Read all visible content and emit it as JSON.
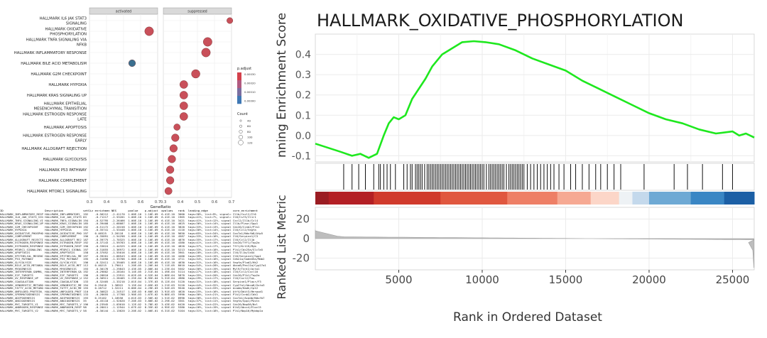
{
  "chart_data": [
    {
      "type": "scatter",
      "subtype": "dotplot",
      "facets": [
        "activated",
        "suppressed"
      ],
      "xlabel": "GeneRatio",
      "xlim": [
        0.3,
        0.7
      ],
      "xticks": [
        "0.3",
        "0.4",
        "0.5",
        "0.6",
        "0.7"
      ],
      "categories": [
        "HALLMARK IL6 JAK STAT3 SIGNALING",
        "HALLMARK OXIDATIVE PHOSPHORYLATION",
        "HALLMARK TNFA SIGNALING VIA NFKB",
        "HALLMARK INFLAMMATORY RESPONSE",
        "HALLMARK BILE ACID METABOLISM",
        "HALLMARK G2M CHECKPOINT",
        "HALLMARK HYPOXIA",
        "HALLMARK KRAS SIGNALING UP",
        "HALLMARK EPITHELIAL MESENCHYMAL TRANSITION",
        "HALLMARK ESTROGEN RESPONSE LATE",
        "HALLMARK APOPTOSIS",
        "HALLMARK ESTROGEN RESPONSE EARLY",
        "HALLMARK ALLOGRAFT REJECTION",
        "HALLMARK GLYCOLYSIS",
        "HALLMARK P53 PATHWAY",
        "HALLMARK COMPLEMENT",
        "HALLMARK MTORC1 SIGNALING"
      ],
      "category_labels": [
        [
          "HALLMARK IL6 JAK STAT3",
          "SIGNALING"
        ],
        [
          "HALLMARK OXIDATIVE",
          "PHOSPHORYLATION"
        ],
        [
          "HALLMARK TNFA SIGNALING VIA",
          "NFKB"
        ],
        [
          "HALLMARK INFLAMMATORY RESPONSE"
        ],
        [
          "HALLMARK BILE ACID METABOLISM"
        ],
        [
          "HALLMARK G2M CHECKPOINT"
        ],
        [
          "HALLMARK HYPOXIA"
        ],
        [
          "HALLMARK KRAS SIGNALING UP"
        ],
        [
          "HALLMARK EPITHELIAL",
          "MESENCHYMAL TRANSITION"
        ],
        [
          "HALLMARK ESTROGEN RESPONSE",
          "LATE"
        ],
        [
          "HALLMARK APOPTOSIS"
        ],
        [
          "HALLMARK ESTROGEN RESPONSE",
          "EARLY"
        ],
        [
          "HALLMARK ALLOGRAFT REJECTION"
        ],
        [
          "HALLMARK GLYCOLYSIS"
        ],
        [
          "HALLMARK P53 PATHWAY"
        ],
        [
          "HALLMARK COMPLEMENT"
        ],
        [
          "HALLMARK MTORC1 SIGNALING"
        ]
      ],
      "points": [
        {
          "facet": "suppressed",
          "category": 0,
          "x": 0.69,
          "size": 40,
          "color": "#c8505a"
        },
        {
          "facet": "activated",
          "category": 1,
          "x": 0.65,
          "size": 120,
          "color": "#c9505a"
        },
        {
          "facet": "suppressed",
          "category": 2,
          "x": 0.56,
          "size": 120,
          "color": "#c9505a"
        },
        {
          "facet": "suppressed",
          "category": 3,
          "x": 0.55,
          "size": 120,
          "color": "#c9505a"
        },
        {
          "facet": "activated",
          "category": 4,
          "x": 0.55,
          "size": 60,
          "color": "#3a6f8f"
        },
        {
          "facet": "suppressed",
          "category": 5,
          "x": 0.49,
          "size": 110,
          "color": "#c9505a"
        },
        {
          "facet": "suppressed",
          "category": 6,
          "x": 0.42,
          "size": 90,
          "color": "#c9505a"
        },
        {
          "facet": "suppressed",
          "category": 7,
          "x": 0.42,
          "size": 90,
          "color": "#c9505a"
        },
        {
          "facet": "suppressed",
          "category": 8,
          "x": 0.42,
          "size": 90,
          "color": "#c9505a"
        },
        {
          "facet": "suppressed",
          "category": 9,
          "x": 0.42,
          "size": 90,
          "color": "#c9505a"
        },
        {
          "facet": "suppressed",
          "category": 10,
          "x": 0.38,
          "size": 50,
          "color": "#c9505a"
        },
        {
          "facet": "suppressed",
          "category": 11,
          "x": 0.37,
          "size": 80,
          "color": "#c9505a"
        },
        {
          "facet": "suppressed",
          "category": 12,
          "x": 0.36,
          "size": 80,
          "color": "#c9505a"
        },
        {
          "facet": "suppressed",
          "category": 13,
          "x": 0.35,
          "size": 80,
          "color": "#c9505a"
        },
        {
          "facet": "suppressed",
          "category": 14,
          "x": 0.34,
          "size": 80,
          "color": "#c9505a"
        },
        {
          "facet": "suppressed",
          "category": 15,
          "x": 0.34,
          "size": 80,
          "color": "#c9505a"
        },
        {
          "facet": "suppressed",
          "category": 16,
          "x": 0.33,
          "size": 70,
          "color": "#c9505a"
        }
      ],
      "legend_color": {
        "title": "p.adjust",
        "labels": [
          "0.00030",
          "0.00020",
          "0.00010",
          "0.00000"
        ],
        "colors": [
          "#d3404b",
          "#b15a80",
          "#7a6ea0",
          "#3f78b4"
        ]
      },
      "legend_size": {
        "title": "Count",
        "labels": [
          "40",
          "60",
          "80",
          "100",
          "120"
        ]
      }
    },
    {
      "type": "line",
      "title": "HALLMARK_OXIDATIVE_PHOSPHORYLATION",
      "ylabel_top": "Running Enrichment Score",
      "ylabel_top_visible": "nning Enrichment Score",
      "ylabel_bottom": "Ranked List Metric",
      "xlabel": "Rank in Ordered Dataset",
      "xlim": [
        0,
        26300
      ],
      "xticks": [
        5000,
        10000,
        15000,
        20000,
        25000
      ],
      "xtick_labels": [
        "5000",
        "10000",
        "15000",
        "20000",
        "25000"
      ],
      "es_ylim": [
        -0.13,
        0.5
      ],
      "es_yticks": [
        "0.4",
        "0.3",
        "0.2",
        "0.1",
        "0.0",
        "-0.1"
      ],
      "es_ytick_values": [
        0.4,
        0.3,
        0.2,
        0.1,
        0.0,
        -0.1
      ],
      "metric_ylim": [
        -32,
        32
      ],
      "metric_yticks": [
        "20",
        "0",
        "-20"
      ],
      "metric_ytick_values": [
        20,
        0,
        -20
      ],
      "es_color": "#1ee81e",
      "es_curve": {
        "x": [
          0,
          1500,
          2200,
          2700,
          3200,
          3700,
          4100,
          4400,
          4700,
          5000,
          5400,
          5800,
          6200,
          6600,
          7000,
          7600,
          8200,
          8800,
          9500,
          10200,
          11000,
          12000,
          13000,
          14000,
          15000,
          16000,
          17000,
          18000,
          19000,
          20000,
          21000,
          22000,
          23000,
          24000,
          25000,
          25400,
          25800,
          26300
        ],
        "y": [
          -0.04,
          -0.08,
          -0.1,
          -0.09,
          -0.11,
          -0.09,
          0.0,
          0.06,
          0.09,
          0.08,
          0.1,
          0.18,
          0.23,
          0.28,
          0.34,
          0.4,
          0.43,
          0.46,
          0.465,
          0.46,
          0.45,
          0.42,
          0.38,
          0.35,
          0.32,
          0.27,
          0.23,
          0.19,
          0.15,
          0.11,
          0.08,
          0.06,
          0.03,
          0.01,
          0.02,
          -0.0,
          0.01,
          -0.01
        ]
      },
      "hit_ranks": [
        1700,
        2200,
        2600,
        3000,
        3500,
        3800,
        3900,
        4100,
        4300,
        4500,
        4800,
        5300,
        5500,
        5700,
        5800,
        6000,
        6100,
        6200,
        6300,
        6400,
        6550,
        6700,
        6800,
        6900,
        7000,
        7100,
        7200,
        7300,
        7400,
        7500,
        7600,
        7700,
        7800,
        7900,
        8000,
        8100,
        8200,
        8300,
        8400,
        8500,
        8600,
        8700,
        8800,
        8900,
        9000,
        9100,
        9200,
        9300,
        9400,
        9500,
        9600,
        9700,
        9800,
        9900,
        10000,
        10100,
        10250,
        10400,
        10500,
        10600,
        10700,
        10800,
        10900,
        11000,
        11100,
        11200,
        11300,
        11450,
        11600,
        11700,
        11800,
        11900,
        12000,
        12100,
        12200,
        12300,
        12400,
        12500,
        12700,
        12900,
        13100,
        13300,
        13500,
        13700,
        13900,
        14100,
        14300,
        14600,
        14900,
        15300,
        15600,
        16000,
        16400,
        16800,
        17100,
        17500,
        17900,
        18300,
        19700,
        21500,
        22300,
        23200,
        24400,
        25000
      ],
      "colorbar": [
        {
          "start": 0,
          "end": 800,
          "color": "#9a1c22"
        },
        {
          "start": 800,
          "end": 3500,
          "color": "#b31f24"
        },
        {
          "start": 3500,
          "end": 7500,
          "color": "#d03a2c"
        },
        {
          "start": 7500,
          "end": 11500,
          "color": "#e0573f"
        },
        {
          "start": 11500,
          "end": 14500,
          "color": "#ee7f66"
        },
        {
          "start": 14500,
          "end": 16500,
          "color": "#f6a993"
        },
        {
          "start": 16500,
          "end": 18200,
          "color": "#fcd6c8"
        },
        {
          "start": 18200,
          "end": 19000,
          "color": "#eef2f5"
        },
        {
          "start": 19000,
          "end": 20000,
          "color": "#c4d9ec"
        },
        {
          "start": 20000,
          "end": 22500,
          "color": "#6ea9d4"
        },
        {
          "start": 22500,
          "end": 24500,
          "color": "#3a86c4"
        },
        {
          "start": 24500,
          "end": 26300,
          "color": "#1c5fa5"
        }
      ]
    }
  ],
  "table": {
    "headers": [
      "ID",
      "Description",
      "setSize",
      "enrichmentScore",
      "NES",
      "pvalue",
      "p.adjust",
      "qvalues",
      "rank",
      "leading_edge",
      "core_enrichment"
    ],
    "rows": [
      [
        "HALLMARK_INFLAMMATORY_RESPONSE",
        "HALLMARK_INFLAMMATORY_RESPON",
        "192",
        "-0.56212",
        "-2.41170",
        "1.00E-10",
        "1.10E-09",
        "6.41E-10",
        "3000",
        "tags=38%, list=9%, signal=35%",
        "Il1b/Cxcl2/Il6"
      ],
      [
        "HALLMARK_IL6_JAK_STAT3_SIGNALING",
        "HALLMARK_IL6_JAK_STAT3_SIGNA",
        "83",
        "-0.71217",
        "-2.53201",
        "1.00E-10",
        "1.10E-09",
        "6.41E-10",
        "1965",
        "tags=41%, list=7%, signal=39%",
        "Il6/Csf3/Il1r1"
      ],
      [
        "HALLMARK_TNFA_SIGNALING_VIA_NFKB",
        "HALLMARK_TNFA_SIGNALING_VIA_",
        "194",
        "-0.52795",
        "-2.26466",
        "1.00E-10",
        "1.10E-09",
        "6.41E-10",
        "3421",
        "tags=41%, list=12%, signal=37%",
        "Cxcl2/Il1b/Ccl4"
      ],
      [
        "HALLMARK_KRAS_SIGNALING_UP",
        "HALLMARK_KRAS_SIGNALING_UP",
        "185",
        "-0.39408",
        "-1.68087",
        "1.00E-10",
        "1.10E-09",
        "6.41E-10",
        "4025",
        "tags=36%, list=14%, signal=31%",
        "Il1b/Plaur/Spp1"
      ],
      [
        "HALLMARK_G2M_CHECKPOINT",
        "HALLMARK_G2M_CHECKPOINT",
        "192",
        "-0.51172",
        "-2.20158",
        "1.00E-10",
        "1.10E-09",
        "6.41E-10",
        "3820",
        "tags=33%, list=13%, signal=29%",
        "Cdc20/Ccnb2/Plk1"
      ],
      [
        "HALLMARK_HYPOXIA",
        "HALLMARK_HYPOXIA",
        "191",
        "-0.35741",
        "-1.53448",
        "1.00E-10",
        "1.10E-09",
        "6.41E-10",
        "4116",
        "tags=30%, list=14%, signal=26%",
        "Il6/Ccl2/Vegfa"
      ],
      [
        "HALLMARK_OXIDATIVE_PHOSPHORYLATION",
        "HALLMARK_OXIDATIVE_PHOSPHOR",
        "197",
        "0.46525",
        "2.20118",
        "1.00E-10",
        "1.10E-09",
        "6.41E-10",
        "9650",
        "tags=65%, list=34%, signal=43%",
        "Cox7a1/Ndufb8/Atp5"
      ],
      [
        "HALLMARK_COMPLEMENT",
        "HALLMARK_COMPLEMENT",
        "196",
        "-0.35891",
        "-1.54298",
        "1.00E-10",
        "1.10E-09",
        "6.41E-10",
        "4587",
        "tags=33%, list=16%, signal=28%",
        "Il6/Serpine1/C3"
      ],
      [
        "HALLMARK_ALLOGRAFT_REJECTION",
        "HALLMARK_ALLOGRAFT_REJECTION",
        "187",
        "-0.39775",
        "-1.70325",
        "1.00E-10",
        "1.10E-09",
        "6.41E-10",
        "4876",
        "tags=35%, list=17%, signal=29%",
        "Il6/Ccl2/Il1b"
      ],
      [
        "HALLMARK_ESTROGEN_RESPONSE_LATE",
        "HALLMARK_ESTROGEN_RESPONSE_",
        "192",
        "-0.37143",
        "-1.59783",
        "1.00E-10",
        "1.10E-09",
        "6.41E-10",
        "4380",
        "tags=41%, list=15%, signal=35%",
        "Cdc20/Tff1/Top2a"
      ],
      [
        "HALLMARK_ESTROGEN_RESPONSE_EARLY",
        "HALLMARK_ESTROGEN_RESPONSE_",
        "190",
        "-0.33624",
        "-1.44325",
        "1.00E-10",
        "1.10E-09",
        "6.41E-10",
        "4820",
        "tags=37%, list=17%, signal=31%",
        "Tff1/Krt19/Myb"
      ],
      [
        "HALLMARK_MTORC1_SIGNALING",
        "HALLMARK_MTORC1_SIGNALING",
        "197",
        "-0.31855",
        "-1.36972",
        "1.00E-10",
        "1.10E-09",
        "6.41E-10",
        "5213",
        "tags=33%, list=18%, signal=27%",
        "Plk1/Cdc25a/Slc7a5"
      ],
      [
        "HALLMARK_APOPTOSIS",
        "HALLMARK_APOPTOSIS",
        "158",
        "-0.37052",
        "-1.55016",
        "1.00E-10",
        "1.10E-09",
        "6.41E-10",
        "3901",
        "tags=28%, list=13%, signal=24%",
        "Il6/Il1b/Cd44"
      ],
      [
        "HALLMARK_EPITHELIAL_MESENCHYMAL_TRANS",
        "HALLMARK_EPITHELIAL_MESENCHY",
        "197",
        "-0.39201",
        "-1.68543",
        "1.00E-10",
        "1.10E-09",
        "6.41E-10",
        "4400",
        "tags=39%, list=15%, signal=34%",
        "Il6/Serpine1/Spp1"
      ],
      [
        "HALLMARK_P53_PATHWAY",
        "HALLMARK_P53_PATHWAY",
        "195",
        "-0.31090",
        "-1.33706",
        "1.00E-10",
        "1.10E-09",
        "6.41E-10",
        "4711",
        "tags=34%, list=16%, signal=29%",
        "Cdkn1a/Gadd45a/Mdm2"
      ],
      [
        "HALLMARK_GLYCOLYSIS",
        "HALLMARK_GLYCOLYSIS",
        "196",
        "-0.32411",
        "-1.39405",
        "1.00E-10",
        "1.10E-09",
        "6.41E-10",
        "4630",
        "tags=31%, list=16%, signal=27%",
        "Vegfa/Plod2/Hk2"
      ],
      [
        "HALLMARK_BILE_ACID_METABOLISM",
        "HALLMARK_BILE_ACID_METABOLIS",
        "112",
        "0.40215",
        "1.79011",
        "1.20E-05",
        "1.20E-04",
        "7.11E-05",
        "8010",
        "tags=54%, list=28%, signal=39%",
        "Abca8/Pex11a/Cyp27a1"
      ],
      [
        "HALLMARK_MYOGENESIS",
        "HALLMARK_MYOGENESIS",
        "193",
        "-0.30176",
        "-1.29843",
        "2.43E-05",
        "2.08E-04",
        "1.23E-04",
        "5502",
        "tags=30%, list=19%, signal=25%",
        "Myl9/Tnnt2/Acta1"
      ],
      [
        "HALLMARK_INTERFERON_GAMMA_RESPONSE",
        "HALLMARK_INTERFERON_GAMMA_RE",
        "192",
        "-0.29802",
        "-1.28164",
        "3.14E-05",
        "2.51E-04",
        "1.49E-04",
        "5114",
        "tags=27%, list=18%, signal=23%",
        "Il6/Ccl2/Cxcl10"
      ],
      [
        "HALLMARK_E2F_TARGETS",
        "HALLMARK_E2F_TARGETS",
        "196",
        "-0.28810",
        "-1.23911",
        "6.02E-05",
        "4.52E-04",
        "2.68E-04",
        "5870",
        "tags=35%, list=20%, signal=28%",
        "Cdc20/Plk1/Top2a"
      ],
      [
        "HALLMARK_UV_RESPONSE_UP",
        "HALLMARK_UV_RESPONSE_UP",
        "152",
        "-0.30911",
        "-1.28405",
        "1.25E-04",
        "8.95E-04",
        "5.31E-04",
        "4980",
        "tags=29%, list=17%, signal=24%",
        "Il6/Cxcl2/Fos"
      ],
      [
        "HALLMARK_COAGULATION",
        "HALLMARK_COAGULATION",
        "133",
        "-0.32405",
        "-1.33210",
        "2.01E-04",
        "1.37E-03",
        "8.12E-04",
        "5120",
        "tags=31%, list=18%, signal=26%",
        "Serpine1/Plaur/F3"
      ],
      [
        "HALLMARK_XENOBIOTIC_METABOLISM",
        "HALLMARK_XENOBIOTIC_METABOLI",
        "194",
        "0.29418",
        "1.38922",
        "3.15E-04",
        "2.05E-03",
        "1.21E-03",
        "9120",
        "tags=44%, list=32%, signal=30%",
        "Cyp27a1/Abca8/Gsta3"
      ],
      [
        "HALLMARK_FATTY_ACID_METABOLISM",
        "HALLMARK_FATTY_ACID_METABOL",
        "155",
        "0.28712",
        "1.32211",
        "6.88E-04",
        "4.29E-03",
        "2.54E-03",
        "9540",
        "tags=46%, list=33%, signal=31%",
        "Acadm/Hadh/Cpt2"
      ],
      [
        "HALLMARK_UNFOLDED_PROTEIN_RESPONSE",
        "HALLMARK_UNFOLDED_PROTEIN_RE",
        "110",
        "-0.30822",
        "-1.24517",
        "1.10E-03",
        "6.60E-03",
        "3.91E-03",
        "4620",
        "tags=25%, list=16%, signal=21%",
        "Atf4/Ddit3/Herpud1"
      ],
      [
        "HALLMARK_SPERMATOGENESIS",
        "HALLMARK_SPERMATOGENESIS",
        "133",
        "-0.28655",
        "-1.17788",
        "2.90E-03",
        "1.67E-02",
        "9.88E-03",
        "5990",
        "tags=30%, list=21%, signal=24%",
        "Plk1/Ccnb2/Cdk1"
      ],
      [
        "HALLMARK_ADIPOGENESIS",
        "HALLMARK_ADIPOGENESIS",
        "193",
        "0.25102",
        "1.18556",
        "4.61E-03",
        "2.56E-02",
        "1.51E-02",
        "8990",
        "tags=38%, list=31%, signal=27%",
        "Cox7a1/Acadm/Ndufb7"
      ],
      [
        "HALLMARK_ANGIOGENESIS",
        "HALLMARK_ANGIOGENESIS",
        "35",
        "-0.45118",
        "-1.52020",
        "7.20E-03",
        "3.86E-02",
        "2.29E-02",
        "3301",
        "tags=37%, list=11%, signal=33%",
        "Vegfa/Spp1/Postn"
      ],
      [
        "HALLMARK_MYC_TARGETS_V1",
        "HALLMARK_MYC_TARGETS_V1",
        "196",
        "-0.23945",
        "-1.03010",
        "1.12E-02",
        "5.78E-02",
        "3.43E-02",
        "6420",
        "tags=29%, list=22%, signal=23%",
        "Cdc20/Nop56/Ncl"
      ],
      [
        "HALLMARK_ANDROGEN_RESPONSE",
        "HALLMARK_ANDROGEN_RESPONSE",
        "98",
        "-0.28011",
        "-1.12944",
        "1.67E-02",
        "8.35E-02",
        "4.95E-02",
        "5380",
        "tags=26%, list=19%, signal=21%",
        "Klk3/Abcc4/Elovl5"
      ],
      [
        "HALLMARK_MYC_TARGETS_V2",
        "HALLMARK_MYC_TARGETS_V2",
        "58",
        "-0.30144",
        "-1.13620",
        "2.20E-02",
        "1.06E-01",
        "6.31E-02",
        "5104",
        "tags=31%, list=18%, signal=26%",
        "Plk1/Nop16/Mybbp1a"
      ]
    ]
  }
}
